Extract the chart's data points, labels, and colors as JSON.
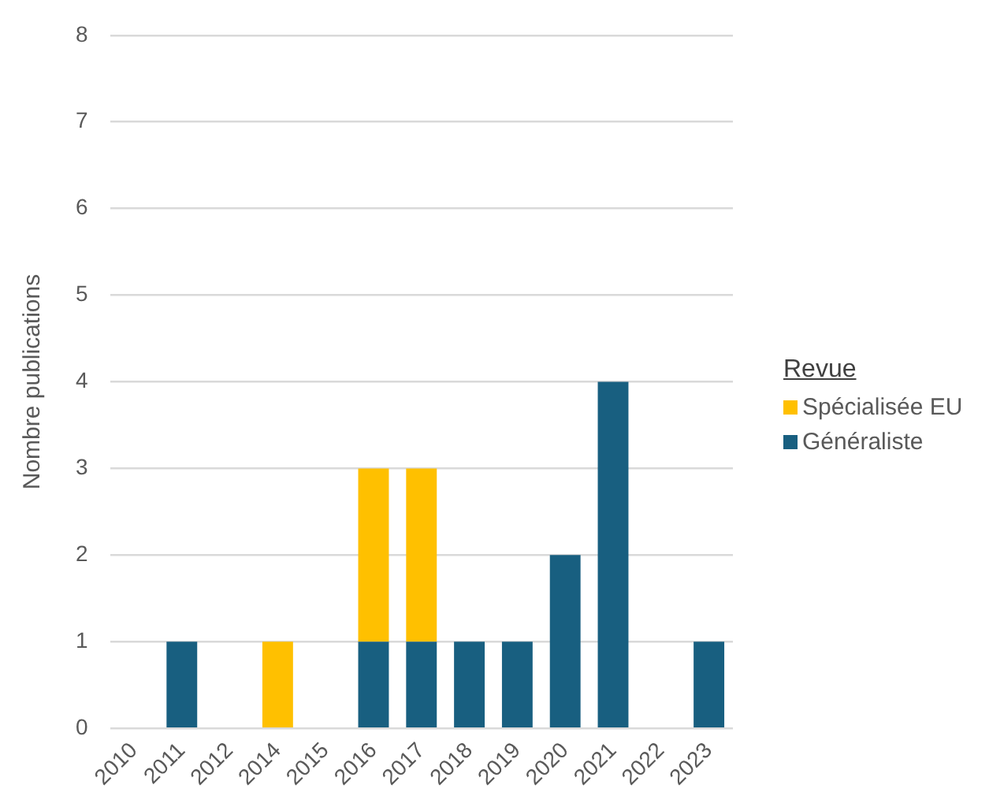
{
  "chart_data": {
    "type": "bar",
    "stacked": true,
    "categories": [
      "2010",
      "2011",
      "2012",
      "2014",
      "2015",
      "2016",
      "2017",
      "2018",
      "2019",
      "2020",
      "2021",
      "2022",
      "2023"
    ],
    "series": [
      {
        "name": "Généraliste",
        "color": "#185f80",
        "values": [
          0,
          1,
          0,
          0,
          0,
          1,
          1,
          1,
          1,
          2,
          4,
          0,
          1
        ]
      },
      {
        "name": "Spécialisée EU",
        "color": "#ffc000",
        "values": [
          0,
          0,
          0,
          1,
          0,
          2,
          2,
          0,
          0,
          0,
          0,
          0,
          0
        ]
      }
    ],
    "ylabel": "Nombre publications",
    "ylim": [
      0,
      8
    ],
    "yticks": [
      0,
      1,
      2,
      3,
      4,
      5,
      6,
      7,
      8
    ],
    "grid": "y",
    "legend": "right",
    "legend_title": "Revue"
  }
}
